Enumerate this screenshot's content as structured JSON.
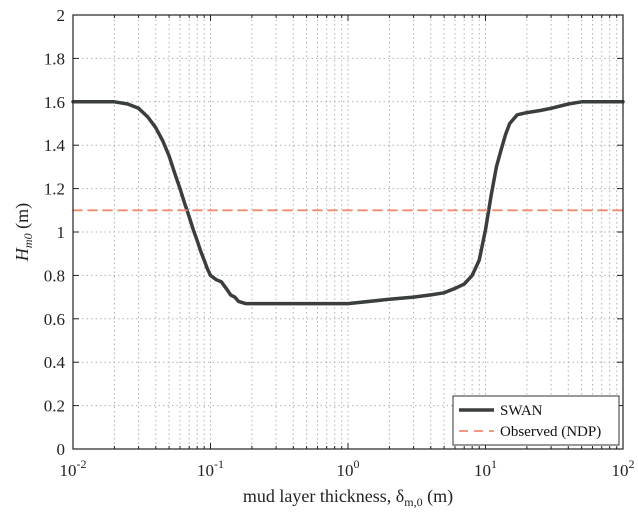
{
  "chart_data": {
    "type": "line",
    "title": "",
    "xlabel": "mud layer thickness, δ",
    "xlabel_subscript": "m,0",
    "xlabel_unit": " (m)",
    "ylabel": "H",
    "ylabel_subscript": "m0",
    "ylabel_unit": " (m)",
    "xscale": "log",
    "xlim": [
      0.01,
      100
    ],
    "ylim": [
      0,
      2
    ],
    "grid": true,
    "legend_position": "bottom-right",
    "x_ticks": [
      {
        "base": "10",
        "exp": "-2"
      },
      {
        "base": "10",
        "exp": "-1"
      },
      {
        "base": "10",
        "exp": "0"
      },
      {
        "base": "10",
        "exp": "1"
      },
      {
        "base": "10",
        "exp": "2"
      }
    ],
    "y_ticks": [
      "0",
      "0.2",
      "0.4",
      "0.6",
      "0.8",
      "1",
      "1.2",
      "1.4",
      "1.6",
      "1.8",
      "2"
    ],
    "series": [
      {
        "name": "SWAN",
        "color": "#3a3f3c",
        "style": "solid",
        "x": [
          0.01,
          0.015,
          0.02,
          0.025,
          0.03,
          0.035,
          0.04,
          0.045,
          0.05,
          0.055,
          0.06,
          0.065,
          0.07,
          0.075,
          0.08,
          0.085,
          0.09,
          0.095,
          0.1,
          0.11,
          0.12,
          0.13,
          0.14,
          0.15,
          0.16,
          0.18,
          0.2,
          0.3,
          0.5,
          1,
          2,
          3,
          4,
          5,
          6,
          7,
          8,
          9,
          10,
          11,
          12,
          13,
          14,
          15,
          17,
          20,
          25,
          30,
          40,
          50,
          60,
          70,
          100
        ],
        "y": [
          1.6,
          1.6,
          1.6,
          1.59,
          1.57,
          1.53,
          1.48,
          1.42,
          1.35,
          1.27,
          1.2,
          1.13,
          1.07,
          1.01,
          0.96,
          0.91,
          0.87,
          0.83,
          0.8,
          0.78,
          0.77,
          0.74,
          0.71,
          0.7,
          0.68,
          0.67,
          0.67,
          0.67,
          0.67,
          0.67,
          0.69,
          0.7,
          0.71,
          0.72,
          0.74,
          0.76,
          0.8,
          0.87,
          1.01,
          1.17,
          1.3,
          1.38,
          1.45,
          1.5,
          1.54,
          1.55,
          1.56,
          1.57,
          1.59,
          1.6,
          1.6,
          1.6,
          1.6
        ]
      },
      {
        "name": "Observed (NDP)",
        "color": "#f08a70",
        "style": "dashed",
        "x": [
          0.01,
          100
        ],
        "y": [
          1.1,
          1.1
        ]
      }
    ]
  }
}
